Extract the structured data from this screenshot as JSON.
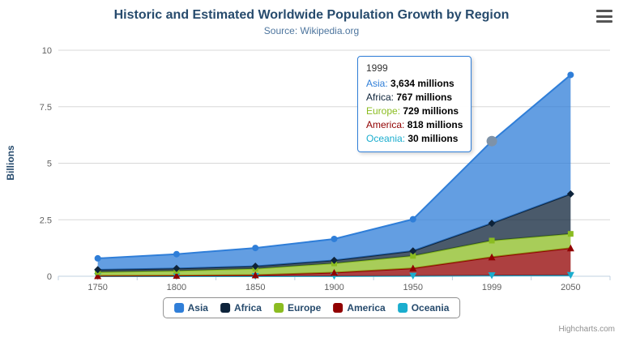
{
  "title": "Historic and Estimated Worldwide Population Growth by Region",
  "subtitle": "Source: Wikipedia.org",
  "credits": "Highcharts.com",
  "chart_data": {
    "type": "area",
    "stacked": true,
    "categories": [
      "1750",
      "1800",
      "1850",
      "1900",
      "1950",
      "1999",
      "2050"
    ],
    "series": [
      {
        "name": "Asia",
        "color": "#2f7ed8",
        "marker": "circle",
        "values_millions": [
          502,
          635,
          809,
          947,
          1402,
          3634,
          5268
        ]
      },
      {
        "name": "Africa",
        "color": "#0d233a",
        "marker": "diamond",
        "values_millions": [
          106,
          107,
          111,
          133,
          221,
          767,
          1766
        ]
      },
      {
        "name": "Europe",
        "color": "#8bbc21",
        "marker": "square",
        "values_millions": [
          163,
          203,
          276,
          408,
          547,
          729,
          628
        ]
      },
      {
        "name": "America",
        "color": "#910000",
        "marker": "triangle",
        "values_millions": [
          18,
          31,
          54,
          156,
          339,
          818,
          1201
        ]
      },
      {
        "name": "Oceania",
        "color": "#1aadce",
        "marker": "triangle-down",
        "values_millions": [
          2,
          2,
          2,
          6,
          13,
          30,
          46
        ]
      }
    ],
    "ylabel": "Billions",
    "xlabel": "",
    "ylim": [
      0,
      10
    ],
    "yticks": [
      0,
      2.5,
      5,
      7.5,
      10
    ],
    "ytick_labels": [
      "0",
      "2.5",
      "5",
      "7.5",
      "10"
    ],
    "grid": true,
    "legend_position": "bottom",
    "fill_opacity": 0.75,
    "grid_color": "#d8d8d8",
    "axis_line_color": "#c0d0e0",
    "hover": {
      "series": "Asia",
      "category_index": 5,
      "marker_color": "#7e92a8",
      "radius": 6.5
    }
  },
  "tooltip": {
    "header": "1999",
    "border_color": "#2f7ed8",
    "rows": [
      {
        "name": "Asia",
        "color": "#2f7ed8",
        "value": "3,634 millions"
      },
      {
        "name": "Africa",
        "color": "#0d233a",
        "value": "767 millions"
      },
      {
        "name": "Europe",
        "color": "#8bbc21",
        "value": "729 millions"
      },
      {
        "name": "America",
        "color": "#910000",
        "value": "818 millions"
      },
      {
        "name": "Oceania",
        "color": "#1aadce",
        "value": "30 millions"
      }
    ]
  }
}
